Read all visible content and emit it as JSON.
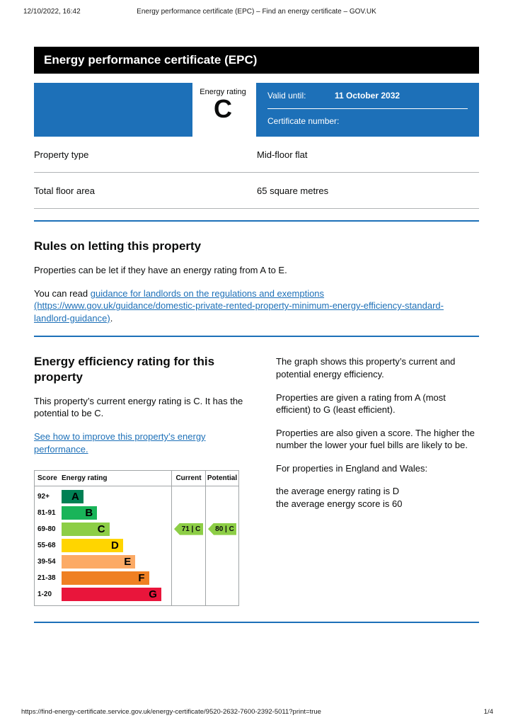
{
  "print_header": {
    "timestamp": "12/10/2022, 16:42",
    "title": "Energy performance certificate (EPC) – Find an energy certificate – GOV.UK"
  },
  "banner": {
    "title": "Energy performance certificate (EPC)"
  },
  "summary": {
    "rating_label": "Energy rating",
    "rating_value": "C",
    "valid_until_label": "Valid until:",
    "valid_until_value": "11 October 2032",
    "certificate_number_label": "Certificate number:",
    "box_color": "#1d70b8"
  },
  "property_details": {
    "rows": [
      {
        "label": "Property type",
        "value": "Mid-floor flat"
      },
      {
        "label": "Total floor area",
        "value": "65 square metres"
      }
    ]
  },
  "rules": {
    "heading": "Rules on letting this property",
    "para1": "Properties can be let if they have an energy rating from A to E.",
    "para2_prefix": "You can read ",
    "link_text": "guidance for landlords on the regulations and exemptions (https://www.gov.uk/guidance/domestic-private-rented-property-minimum-energy-efficiency-standard-landlord-guidance)",
    "para2_suffix": "."
  },
  "rating_section": {
    "heading": "Energy efficiency rating for this property",
    "para1": "This property’s current energy rating is C. It has the potential to be C.",
    "improve_link": "See how to improve this property’s energy performance."
  },
  "explanation": {
    "para1": "The graph shows this property’s current and potential energy efficiency.",
    "para2": "Properties are given a rating from A (most efficient) to G (least efficient).",
    "para3": "Properties are also given a score. The higher the number the lower your fuel bills are likely to be.",
    "para4": "For properties in England and Wales:",
    "avg_rating_line": "the average energy rating is D",
    "avg_score_line": "the average energy score is 60"
  },
  "chart_data": {
    "type": "epc-rating-bands",
    "headers": {
      "score": "Score",
      "rating": "Energy rating",
      "current": "Current",
      "potential": "Potential"
    },
    "bands": [
      {
        "score": "92+",
        "letter": "A",
        "color": "#008054",
        "width_pct": 16
      },
      {
        "score": "81-91",
        "letter": "B",
        "color": "#19b459",
        "width_pct": 26
      },
      {
        "score": "69-80",
        "letter": "C",
        "color": "#8dce46",
        "width_pct": 35
      },
      {
        "score": "55-68",
        "letter": "D",
        "color": "#ffd500",
        "width_pct": 45
      },
      {
        "score": "39-54",
        "letter": "E",
        "color": "#fcaa65",
        "width_pct": 54
      },
      {
        "score": "21-38",
        "letter": "F",
        "color": "#ef8023",
        "width_pct": 64
      },
      {
        "score": "1-20",
        "letter": "G",
        "color": "#e9153b",
        "width_pct": 73
      }
    ],
    "current": {
      "score": 71,
      "letter": "C",
      "label": "71 | C",
      "band_index": 2,
      "color": "#8dce46"
    },
    "potential": {
      "score": 80,
      "letter": "C",
      "label": "80 | C",
      "band_index": 2,
      "color": "#8dce46"
    }
  },
  "footer": {
    "url": "https://find-energy-certificate.service.gov.uk/energy-certificate/9520-2632-7600-2392-5011?print=true",
    "page_indicator": "1/4"
  }
}
